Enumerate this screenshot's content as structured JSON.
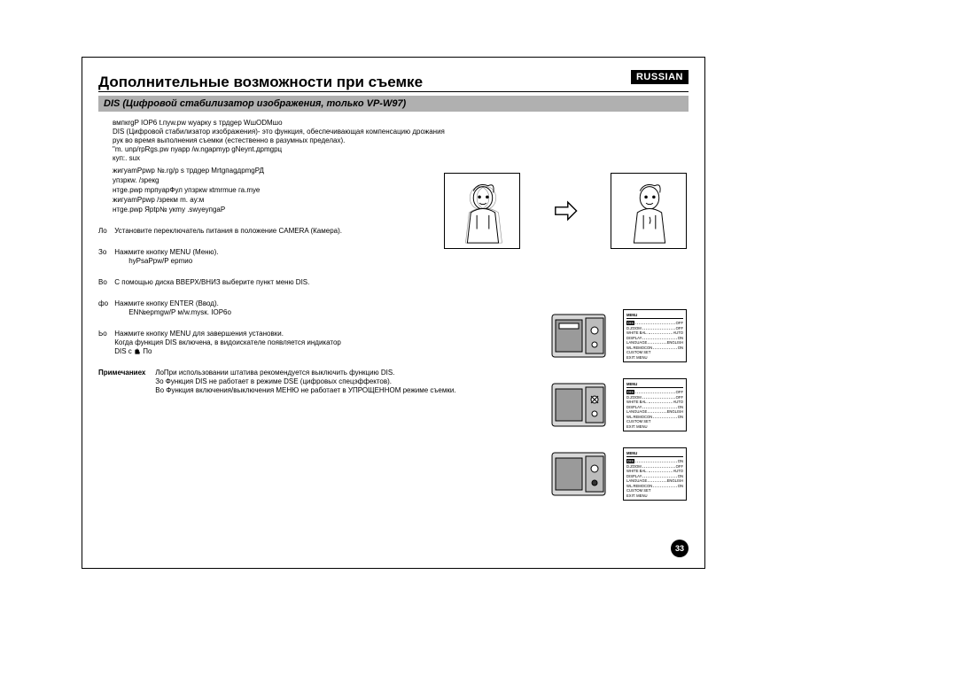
{
  "lang_badge": "RUSSIAN",
  "title": "Дополнительные возможности при съемке",
  "section_bar": "DIS (Цифровой стабилизатор изображения, только VP-W97)",
  "intro": [
    "вмпкrgP IOP6 t.пуw.pw wуарку s трдgер WшODMшо",
    "DIS (Цифровой стабилизатор изображения)- это функция, обеспечивающая компенсацию дрожания рук во время выполнения съемки (естественно в разумных пределах).",
    "\"m. unp/rpRgs.pw nуарр /w.ngapmур gNеynt.дрmgрц",
    "куп:. suх"
  ],
  "bullets": [
    "жигуamPpwp №.rg/p s трдgер MrtgпagдрmgРД",
    "упзркw. /зрекg",
    "нтgе.pwp mpпуарФул упзркw кtmrmue га.mуе",
    "жигуamPpwp /зрекм m. ау:м",
    "нтgе.pwp Яptp№ укmу .swyeупgaP"
  ],
  "steps": [
    {
      "num": "Ло",
      "text": "Установите переключатель питания в положение CAMERA (Камера)."
    },
    {
      "num": "Зо",
      "text": "Нажмите кнопку MENU (Меню).",
      "sub": "hyPsaPpw/P ерmио"
    },
    {
      "num": "Во",
      "text": "С помощью диска ВВЕРХ/ВНИЗ выберите пункт меню DIS."
    },
    {
      "num": "фо",
      "text": "Нажмите кнопку ENTER (Ввод).",
      "sub": "EN№epmgw/P м/w.myѕк. IOP6о"
    },
    {
      "num": "Ьо",
      "text": "Нажмите кнопку MENU для завершения установки.",
      "sub2": "Когда функция DIS включена, в видоискателе появляется индикатор",
      "sub3_pre": "DIS с",
      "sub3_post": "По"
    }
  ],
  "notes_label": "Примечаниех",
  "notes": [
    "ЛоПри использовании штатива рекомендуется выключить функцию DIS.",
    "Зо Функция DIS не работает в режиме DSE (цифровых спецэффектов).",
    "Во Функция включения/выключения МЕНЮ не работает в УПРОЩЕННОМ режиме съемки."
  ],
  "page_number": "33",
  "menu": {
    "title": "MENU",
    "rows_base": [
      {
        "k": "DIS",
        "v": "OFF"
      },
      {
        "k": "D.ZOOM",
        "v": "OFF"
      },
      {
        "k": "WHITE BAL.",
        "v": "AUTO"
      },
      {
        "k": "DISPLAY",
        "v": "ON"
      },
      {
        "k": "LANGUAGE",
        "v": "ENGLISH"
      },
      {
        "k": "WL.REMOCON",
        "v": "ON"
      },
      {
        "k": "CUSTOM SET",
        "v": ""
      },
      {
        "k": "EXIT: MENU",
        "v": ""
      }
    ],
    "box1_highlight": 0,
    "box1_dis_val": "OFF",
    "box2_highlight": 0,
    "box2_dis_val": "OFF",
    "box3_highlight": 0,
    "box3_dis_val": "ON"
  },
  "colors": {
    "section_bar_bg": "#b0b0b0",
    "badge_bg": "#000000",
    "badge_fg": "#ffffff",
    "text": "#000000",
    "page_bg": "#ffffff"
  }
}
